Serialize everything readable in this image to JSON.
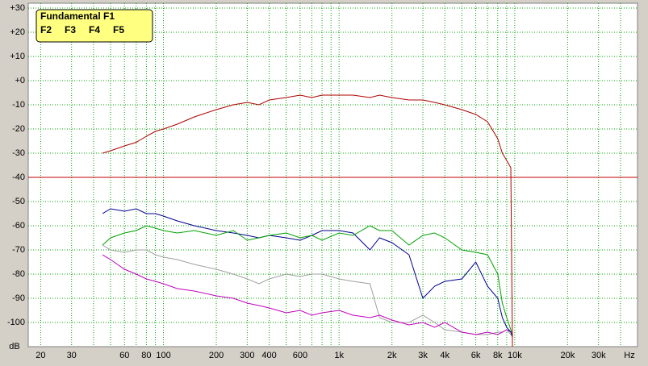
{
  "chart_data": {
    "type": "line",
    "x_label": "Hz",
    "y_label": "dB",
    "log_x": true,
    "grid": true,
    "legend_position": "upper left",
    "reference_level": -40,
    "reference_color": "#c00000",
    "xlim": [
      17,
      50000
    ],
    "ylim": [
      -110,
      32
    ],
    "xticks": [
      20,
      30,
      60,
      80,
      100,
      200,
      300,
      400,
      600,
      {
        "value": 1000,
        "label": "1k"
      },
      {
        "value": 2000,
        "label": "2k"
      },
      {
        "value": 3000,
        "label": "3k"
      },
      {
        "value": 4000,
        "label": "4k"
      },
      {
        "value": 6000,
        "label": "6k"
      },
      {
        "value": 8000,
        "label": "8k"
      },
      {
        "value": 10000,
        "label": "10k"
      },
      {
        "value": 20000,
        "label": "20k"
      },
      {
        "value": 30000,
        "label": "30k"
      }
    ],
    "xgrid_minor": [
      40,
      50,
      70,
      90,
      500,
      700,
      800,
      900,
      5000,
      7000,
      9000,
      40000
    ],
    "yticks": [
      {
        "value": 30,
        "label": "+30"
      },
      {
        "value": 20,
        "label": "+20"
      },
      {
        "value": 10,
        "label": "+10"
      },
      {
        "value": 0,
        "label": "+0"
      },
      -10,
      -20,
      -30,
      -40,
      -50,
      -60,
      -70,
      -80,
      -90,
      -100
    ],
    "x": [
      45,
      50,
      60,
      70,
      80,
      90,
      100,
      120,
      150,
      200,
      250,
      300,
      350,
      400,
      500,
      600,
      700,
      800,
      1000,
      1200,
      1500,
      1700,
      2000,
      2500,
      3000,
      3500,
      4000,
      5000,
      6000,
      7000,
      8000,
      8500,
      9000,
      9500,
      9700
    ],
    "series": [
      {
        "name": "Fundamental F1",
        "color": "#b00000",
        "values": [
          -30,
          -29,
          -27,
          -25.5,
          -23,
          -21,
          -20,
          -18,
          -15,
          -12,
          -10,
          -9,
          -10,
          -8,
          -7,
          -6,
          -7,
          -6,
          -6,
          -6,
          -7,
          -6,
          -7,
          -8,
          -8,
          -9,
          -10,
          -12,
          -14,
          -17,
          -24,
          -30,
          -33,
          -36,
          -110
        ]
      },
      {
        "name": "F2",
        "color": "#00a000",
        "values": [
          -68,
          -65,
          -63,
          -62,
          -60,
          -61,
          -62,
          -63,
          -62,
          -64,
          -62,
          -66,
          -65,
          -64,
          -63,
          -65,
          -64,
          -66,
          -63,
          -64,
          -60,
          -62,
          -62,
          -68,
          -64,
          -63,
          -65,
          -70,
          -71,
          -72,
          -80,
          -92,
          -98,
          -103,
          -105
        ]
      },
      {
        "name": "F3",
        "color": "#000090",
        "values": [
          -55,
          -53,
          -54,
          -53,
          -55,
          -55,
          -56,
          -58,
          -60,
          -62,
          -63,
          -64,
          -65,
          -64,
          -65,
          -66,
          -64,
          -62,
          -62,
          -63,
          -70,
          -65,
          -67,
          -72,
          -90,
          -85,
          -83,
          -82,
          -75,
          -85,
          -90,
          -98,
          -102,
          -104,
          -106
        ]
      },
      {
        "name": "F4",
        "color": "#c000c0",
        "values": [
          -72,
          -74,
          -78,
          -80,
          -82,
          -83,
          -84,
          -86,
          -87,
          -89,
          -90,
          -92,
          -93,
          -94,
          -96,
          -95,
          -97,
          -96,
          -95,
          -97,
          -98,
          -97,
          -99,
          -101,
          -100,
          -102,
          -100,
          -104,
          -105,
          -104,
          -105,
          -104,
          -103,
          -104,
          -105
        ]
      },
      {
        "name": "F5",
        "color": "#a0a0a0",
        "values": [
          -68,
          -70,
          -71,
          -70,
          -70,
          -72,
          -73,
          -74,
          -76,
          -78,
          -80,
          -82,
          -84,
          -82,
          -80,
          -81,
          -80,
          -80,
          -82,
          -83,
          -84,
          -98,
          -100,
          -100,
          -97,
          -100,
          -103,
          -104,
          -105,
          -105,
          -104,
          -104,
          -103,
          -105,
          -106
        ]
      }
    ]
  }
}
